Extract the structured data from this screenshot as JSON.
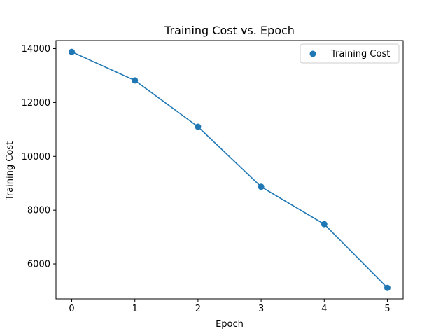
{
  "chart_data": {
    "type": "line",
    "title": "Training Cost vs. Epoch",
    "xlabel": "Epoch",
    "ylabel": "Training Cost",
    "x": [
      0,
      1,
      2,
      3,
      4,
      5
    ],
    "series": [
      {
        "name": "Training Cost",
        "values": [
          13880,
          12820,
          11100,
          8870,
          7480,
          5110
        ],
        "color": "#1f77b4",
        "markers": true
      }
    ],
    "xlim": [
      -0.25,
      5.25
    ],
    "ylim": [
      4700,
      14300
    ],
    "xticks": [
      0,
      1,
      2,
      3,
      4,
      5
    ],
    "xtick_labels": [
      "0",
      "1",
      "2",
      "3",
      "4",
      "5"
    ],
    "yticks": [
      6000,
      8000,
      10000,
      12000,
      14000
    ],
    "ytick_labels": [
      "6000",
      "8000",
      "10000",
      "12000",
      "14000"
    ],
    "grid": false,
    "legend_position": "top-right"
  }
}
